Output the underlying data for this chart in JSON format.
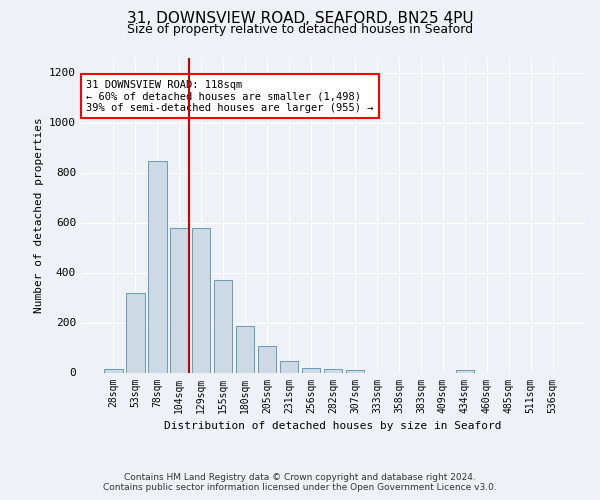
{
  "title_line1": "31, DOWNSVIEW ROAD, SEAFORD, BN25 4PU",
  "title_line2": "Size of property relative to detached houses in Seaford",
  "xlabel": "Distribution of detached houses by size in Seaford",
  "ylabel": "Number of detached properties",
  "bar_color": "#cdd9e5",
  "bar_edge_color": "#6699bb",
  "marker_line_color": "#cc0000",
  "categories": [
    "28sqm",
    "53sqm",
    "78sqm",
    "104sqm",
    "129sqm",
    "155sqm",
    "180sqm",
    "205sqm",
    "231sqm",
    "256sqm",
    "282sqm",
    "307sqm",
    "333sqm",
    "358sqm",
    "383sqm",
    "409sqm",
    "434sqm",
    "460sqm",
    "485sqm",
    "511sqm",
    "536sqm"
  ],
  "values": [
    15,
    320,
    845,
    580,
    580,
    370,
    185,
    105,
    45,
    20,
    15,
    10,
    0,
    0,
    0,
    0,
    10,
    0,
    0,
    0,
    0
  ],
  "ylim": [
    0,
    1260
  ],
  "yticks": [
    0,
    200,
    400,
    600,
    800,
    1000,
    1200
  ],
  "marker_bin_index": 3,
  "annotation_box_text": "31 DOWNSVIEW ROAD: 118sqm\n← 60% of detached houses are smaller (1,498)\n39% of semi-detached houses are larger (955) →",
  "footer_line1": "Contains HM Land Registry data © Crown copyright and database right 2024.",
  "footer_line2": "Contains public sector information licensed under the Open Government Licence v3.0.",
  "background_color": "#eef2f6",
  "plot_bg_color": "#eef2f6",
  "grid_color": "#ffffff",
  "title_fontsize": 11,
  "subtitle_fontsize": 9,
  "axis_label_fontsize": 8,
  "tick_fontsize": 8,
  "xtick_fontsize": 7,
  "footer_fontsize": 6.5
}
